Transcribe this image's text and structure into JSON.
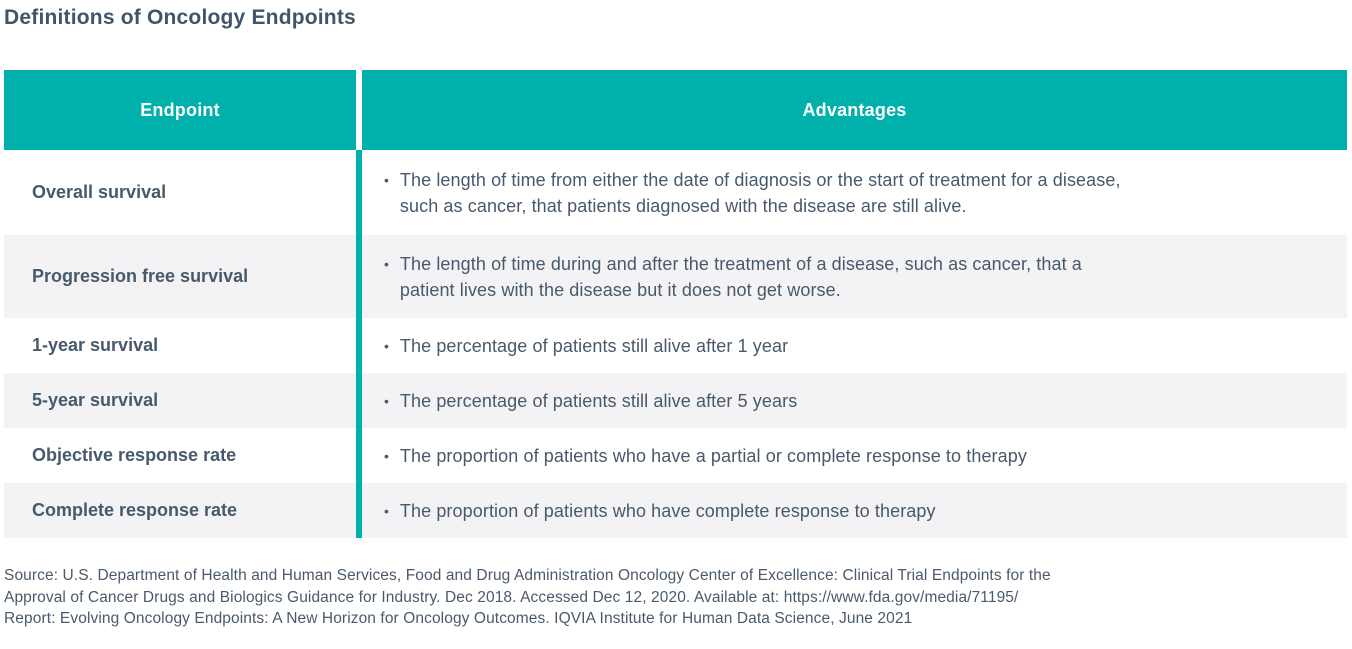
{
  "page": {
    "title": "Definitions of Oncology Endpoints"
  },
  "colors": {
    "teal": "#00b0ab",
    "row_alt_background": "#f3f3f5",
    "header_text": "#ffffff",
    "body_text": "#47596b",
    "title_text": "#42546a"
  },
  "table": {
    "bullet": "•",
    "columns": [
      {
        "label": "Endpoint"
      },
      {
        "label": "Advantages"
      }
    ],
    "rows": [
      {
        "endpoint": "Overall survival",
        "advantage_lines": [
          "The length of time from either the date of diagnosis or the start of treatment for a disease,",
          "such as cancer, that patients diagnosed with the disease are still alive."
        ]
      },
      {
        "endpoint": "Progression free survival",
        "advantage_lines": [
          "The length of time during and after the treatment of a disease, such as cancer, that a",
          "patient lives with the disease but it does not get worse."
        ]
      },
      {
        "endpoint": "1-year survival",
        "advantage_lines": [
          "The percentage of patients still alive after 1 year"
        ]
      },
      {
        "endpoint": "5-year survival",
        "advantage_lines": [
          "The percentage of patients still alive after 5 years"
        ]
      },
      {
        "endpoint": "Objective response rate",
        "advantage_lines": [
          "The proportion of patients who have a partial or complete response to therapy"
        ]
      },
      {
        "endpoint": "Complete response rate",
        "advantage_lines": [
          "The proportion of patients who have complete response to therapy"
        ]
      }
    ]
  },
  "footer": {
    "lines": [
      "Source: U.S. Department of Health and Human Services, Food and Drug Administration Oncology Center of Excellence: Clinical Trial Endpoints for the",
      "Approval of Cancer Drugs and Biologics Guidance for Industry. Dec 2018. Accessed Dec 12, 2020. Available at: https://www.fda.gov/media/71195/",
      "Report: Evolving Oncology Endpoints: A New Horizon for Oncology Outcomes. IQVIA Institute for Human Data Science, June 2021"
    ]
  }
}
